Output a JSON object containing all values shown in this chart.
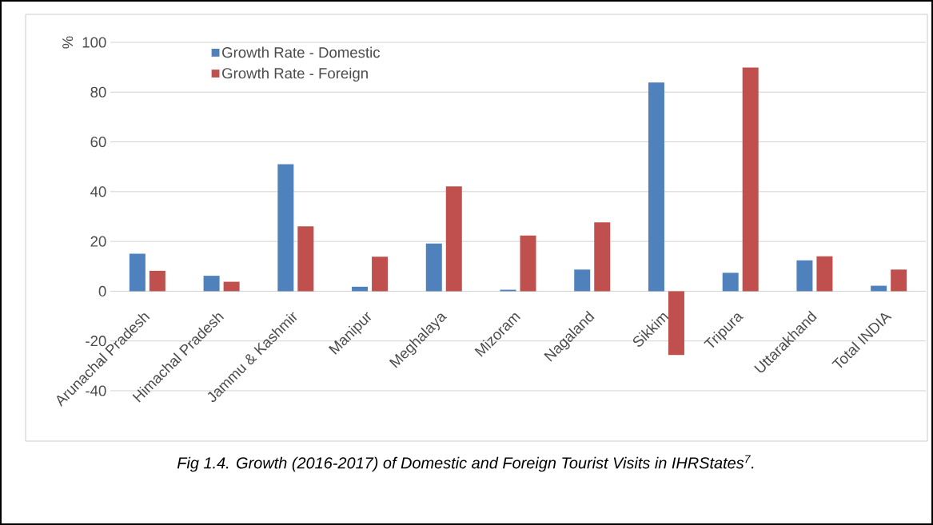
{
  "chart_data": {
    "type": "bar",
    "title": "*Fig 1.4. Growth (2016-2017) of Domestic and Foreign Tourist Visits in IHRStates$^{7}$.*",
    "ylabel": "%",
    "categories": [
      "Arunachal Pradesh",
      "Himachal Pradesh",
      "Jammu & Kashmir",
      "Manipur",
      "Meghalaya",
      "Mizoram",
      "Nagaland",
      "Sikkim",
      "Tripura",
      "Uttarakhand",
      "Total INDIA"
    ],
    "series": [
      {
        "name": "Growth Rate - Domestic",
        "color": "#4f81bd",
        "values": [
          15.1,
          6.2,
          51.0,
          1.8,
          19.2,
          0.6,
          8.7,
          83.9,
          7.4,
          12.4,
          2.2
        ]
      },
      {
        "name": "Growth Rate - Foreign",
        "color": "#c0504d",
        "values": [
          8.2,
          3.8,
          26.1,
          13.9,
          42.1,
          22.4,
          27.7,
          -25.6,
          89.9,
          14.0,
          8.7
        ]
      }
    ],
    "ylim": [
      -40,
      100
    ],
    "yticks": [
      -40,
      -20,
      0,
      20,
      40,
      60,
      80,
      100
    ],
    "grid": "y",
    "legend": "top left"
  }
}
